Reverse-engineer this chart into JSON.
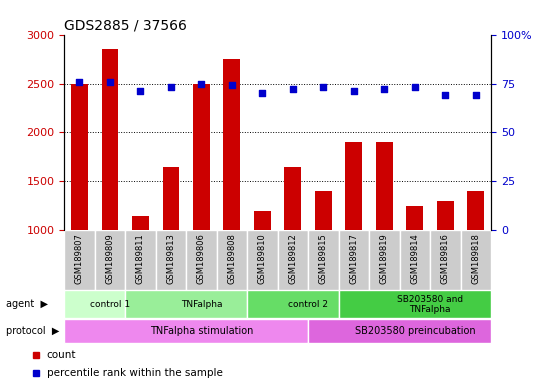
{
  "title": "GDS2885 / 37566",
  "samples": [
    "GSM189807",
    "GSM189809",
    "GSM189811",
    "GSM189813",
    "GSM189806",
    "GSM189808",
    "GSM189810",
    "GSM189812",
    "GSM189815",
    "GSM189817",
    "GSM189819",
    "GSM189814",
    "GSM189816",
    "GSM189818"
  ],
  "counts": [
    2500,
    2850,
    1150,
    1650,
    2500,
    2750,
    1200,
    1650,
    1400,
    1900,
    1900,
    1250,
    1300,
    1400
  ],
  "percentile": [
    76,
    76,
    71,
    73,
    75,
    74,
    70,
    72,
    73,
    71,
    72,
    73,
    69,
    69
  ],
  "ylim_left": [
    1000,
    3000
  ],
  "ylim_right": [
    0,
    100
  ],
  "yticks_left": [
    1000,
    1500,
    2000,
    2500,
    3000
  ],
  "yticks_right": [
    0,
    25,
    50,
    75,
    100
  ],
  "bar_color": "#cc0000",
  "dot_color": "#0000cc",
  "agent_groups": [
    {
      "label": "control 1",
      "start": 0,
      "end": 2,
      "color": "#ccffcc"
    },
    {
      "label": "TNFalpha",
      "start": 2,
      "end": 6,
      "color": "#99ee99"
    },
    {
      "label": "control 2",
      "start": 6,
      "end": 9,
      "color": "#66dd66"
    },
    {
      "label": "SB203580 and\nTNFalpha",
      "start": 9,
      "end": 14,
      "color": "#44cc44"
    }
  ],
  "protocol_groups": [
    {
      "label": "TNFalpha stimulation",
      "start": 0,
      "end": 8,
      "color": "#ee88ee"
    },
    {
      "label": "SB203580 preincubation",
      "start": 8,
      "end": 14,
      "color": "#dd66dd"
    }
  ],
  "bar_width": 0.55,
  "background_color": "#ffffff",
  "plot_bg_color": "#ffffff",
  "label_box_color": "#cccccc",
  "grid_yticks": [
    1500,
    2000,
    2500
  ],
  "legend_count_color": "#cc0000",
  "legend_dot_color": "#0000cc"
}
